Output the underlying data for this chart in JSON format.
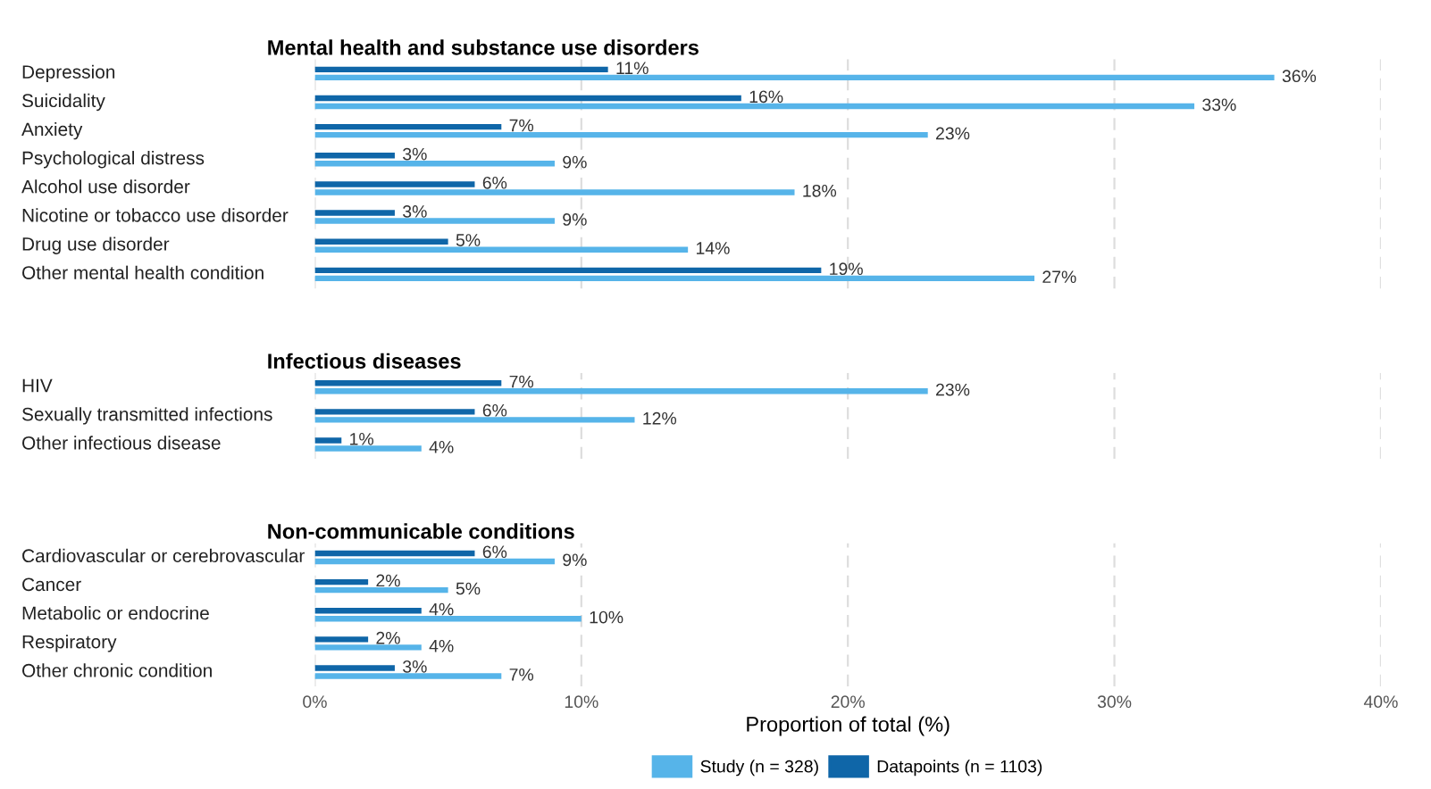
{
  "chart_data": [
    {
      "type": "bar",
      "orientation": "horizontal",
      "title": "Mental health and substance use disorders",
      "categories": [
        "Depression",
        "Suicidality",
        "Anxiety",
        "Psychological distress",
        "Alcohol use disorder",
        "Nicotine or tobacco use disorder",
        "Drug use disorder",
        "Other mental health condition"
      ],
      "series": [
        {
          "color": "#56b4e9",
          "values": [
            36,
            33,
            23,
            9,
            18,
            9,
            14,
            27
          ],
          "value_labels": [
            "36%",
            "33%",
            "23%",
            "9%",
            "18%",
            "9%",
            "14%",
            "27%"
          ]
        },
        {
          "color": "#0f66a8",
          "values": [
            11,
            16,
            7,
            3,
            6,
            3,
            5,
            19
          ],
          "value_labels": [
            "11%",
            "16%",
            "7%",
            "3%",
            "6%",
            "3%",
            "5%",
            "19%"
          ]
        }
      ],
      "xlim": [
        0,
        40
      ],
      "xticks": [
        {
          "value": 0,
          "label": null
        },
        {
          "value": 10,
          "label": null
        },
        {
          "value": 20,
          "label": null
        },
        {
          "value": 30,
          "label": null
        },
        {
          "value": 40,
          "label": null
        }
      ],
      "grid": "x",
      "tick_labels": "y"
    },
    {
      "type": "bar",
      "orientation": "horizontal",
      "title": "Infectious diseases",
      "categories": [
        "HIV",
        "Sexually transmitted infections",
        "Other infectious disease"
      ],
      "series": [
        {
          "color": "#56b4e9",
          "values": [
            23,
            12,
            4
          ],
          "value_labels": [
            "23%",
            "12%",
            "4%"
          ]
        },
        {
          "color": "#0f66a8",
          "values": [
            7,
            6,
            1
          ],
          "value_labels": [
            "7%",
            "6%",
            "1%"
          ]
        }
      ],
      "xlim": [
        0,
        40
      ],
      "xticks": [
        {
          "value": 0,
          "label": null
        },
        {
          "value": 10,
          "label": null
        },
        {
          "value": 20,
          "label": null
        },
        {
          "value": 30,
          "label": null
        },
        {
          "value": 40,
          "label": null
        }
      ],
      "grid": "x",
      "tick_labels": "y"
    },
    {
      "type": "bar",
      "orientation": "horizontal",
      "title": "Non-communicable conditions",
      "xlabel": "Proportion of total (%)",
      "categories": [
        "Cardiovascular or cerebrovascular",
        "Cancer",
        "Metabolic or endocrine",
        "Respiratory",
        "Other chronic condition"
      ],
      "series": [
        {
          "name": "Study (n = 328)",
          "color": "#56b4e9",
          "values": [
            9,
            5,
            10,
            4,
            7
          ],
          "value_labels": [
            "9%",
            "5%",
            "10%",
            "4%",
            "7%"
          ]
        },
        {
          "name": "Datapoints (n = 1103)",
          "color": "#0f66a8",
          "values": [
            6,
            2,
            4,
            2,
            3
          ],
          "value_labels": [
            "6%",
            "2%",
            "4%",
            "2%",
            "3%"
          ]
        }
      ],
      "xlim": [
        0,
        40
      ],
      "xticks": [
        {
          "value": 0,
          "label": "0%"
        },
        {
          "value": 10,
          "label": "10%"
        },
        {
          "value": 20,
          "label": "20%"
        },
        {
          "value": 30,
          "label": "30%"
        },
        {
          "value": 40,
          "label": "40%"
        }
      ],
      "grid": "x",
      "legend": "bottom"
    }
  ]
}
